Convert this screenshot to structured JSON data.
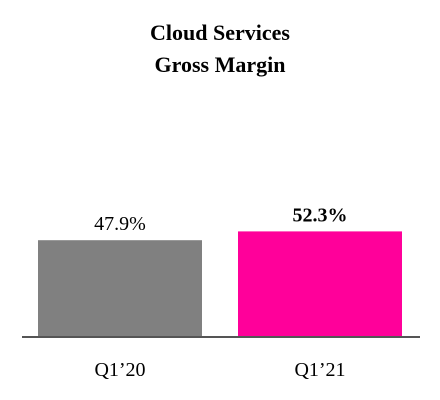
{
  "chart_data": {
    "type": "bar",
    "title": [
      "Cloud Services",
      "Gross Margin"
    ],
    "xlabel": "",
    "ylabel": "",
    "categories": [
      "Q1’20",
      "Q1’21"
    ],
    "values": [
      47.9,
      52.3
    ],
    "value_labels": [
      "47.9%",
      "52.3%"
    ],
    "value_label_bold": [
      false,
      true
    ],
    "colors": [
      "#808080",
      "#FF009A"
    ],
    "ylim": [
      0,
      60
    ],
    "grid": false,
    "legend": "none"
  }
}
